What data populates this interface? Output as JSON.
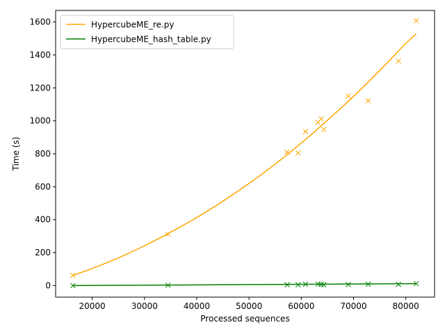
{
  "chart_data": {
    "type": "scatter",
    "title": "",
    "xlabel": "Processed sequences",
    "ylabel": "Time (s)",
    "xlim": [
      13000,
      85500
    ],
    "ylim": [
      -70,
      1670
    ],
    "xticks": [
      20000,
      30000,
      40000,
      50000,
      60000,
      70000,
      80000
    ],
    "yticks": [
      0,
      200,
      400,
      600,
      800,
      1000,
      1200,
      1400,
      1600
    ],
    "grid": false,
    "legend_position": "top-left",
    "series": [
      {
        "name": "HypercubeME_re.py",
        "color": "#ffa500",
        "points": [
          [
            16300,
            62
          ],
          [
            34500,
            312
          ],
          [
            57300,
            810
          ],
          [
            59400,
            805
          ],
          [
            60800,
            935
          ],
          [
            63200,
            990
          ],
          [
            63800,
            1012
          ],
          [
            64300,
            948
          ],
          [
            69000,
            1150
          ],
          [
            72800,
            1122
          ],
          [
            78600,
            1362
          ],
          [
            82000,
            1608
          ]
        ],
        "fit": {
          "x": [
            16300,
            20000,
            25000,
            30000,
            35000,
            40000,
            45000,
            50000,
            55000,
            60000,
            65000,
            70000,
            75000,
            80000,
            82000
          ],
          "y": [
            62,
            104,
            168,
            242,
            324,
            413,
            512,
            620,
            737,
            865,
            1003,
            1148,
            1305,
            1470,
            1527
          ]
        }
      },
      {
        "name": "HypercubeME_hash_table.py",
        "color": "#008000",
        "points": [
          [
            16300,
            0
          ],
          [
            34500,
            2
          ],
          [
            57300,
            5
          ],
          [
            59400,
            5
          ],
          [
            60800,
            8
          ],
          [
            63200,
            9
          ],
          [
            63800,
            7
          ],
          [
            64300,
            5
          ],
          [
            69000,
            6
          ],
          [
            72800,
            8
          ],
          [
            78600,
            7
          ],
          [
            82000,
            12
          ]
        ],
        "fit": {
          "x": [
            16300,
            82000
          ],
          "y": [
            0,
            12
          ]
        }
      }
    ]
  }
}
